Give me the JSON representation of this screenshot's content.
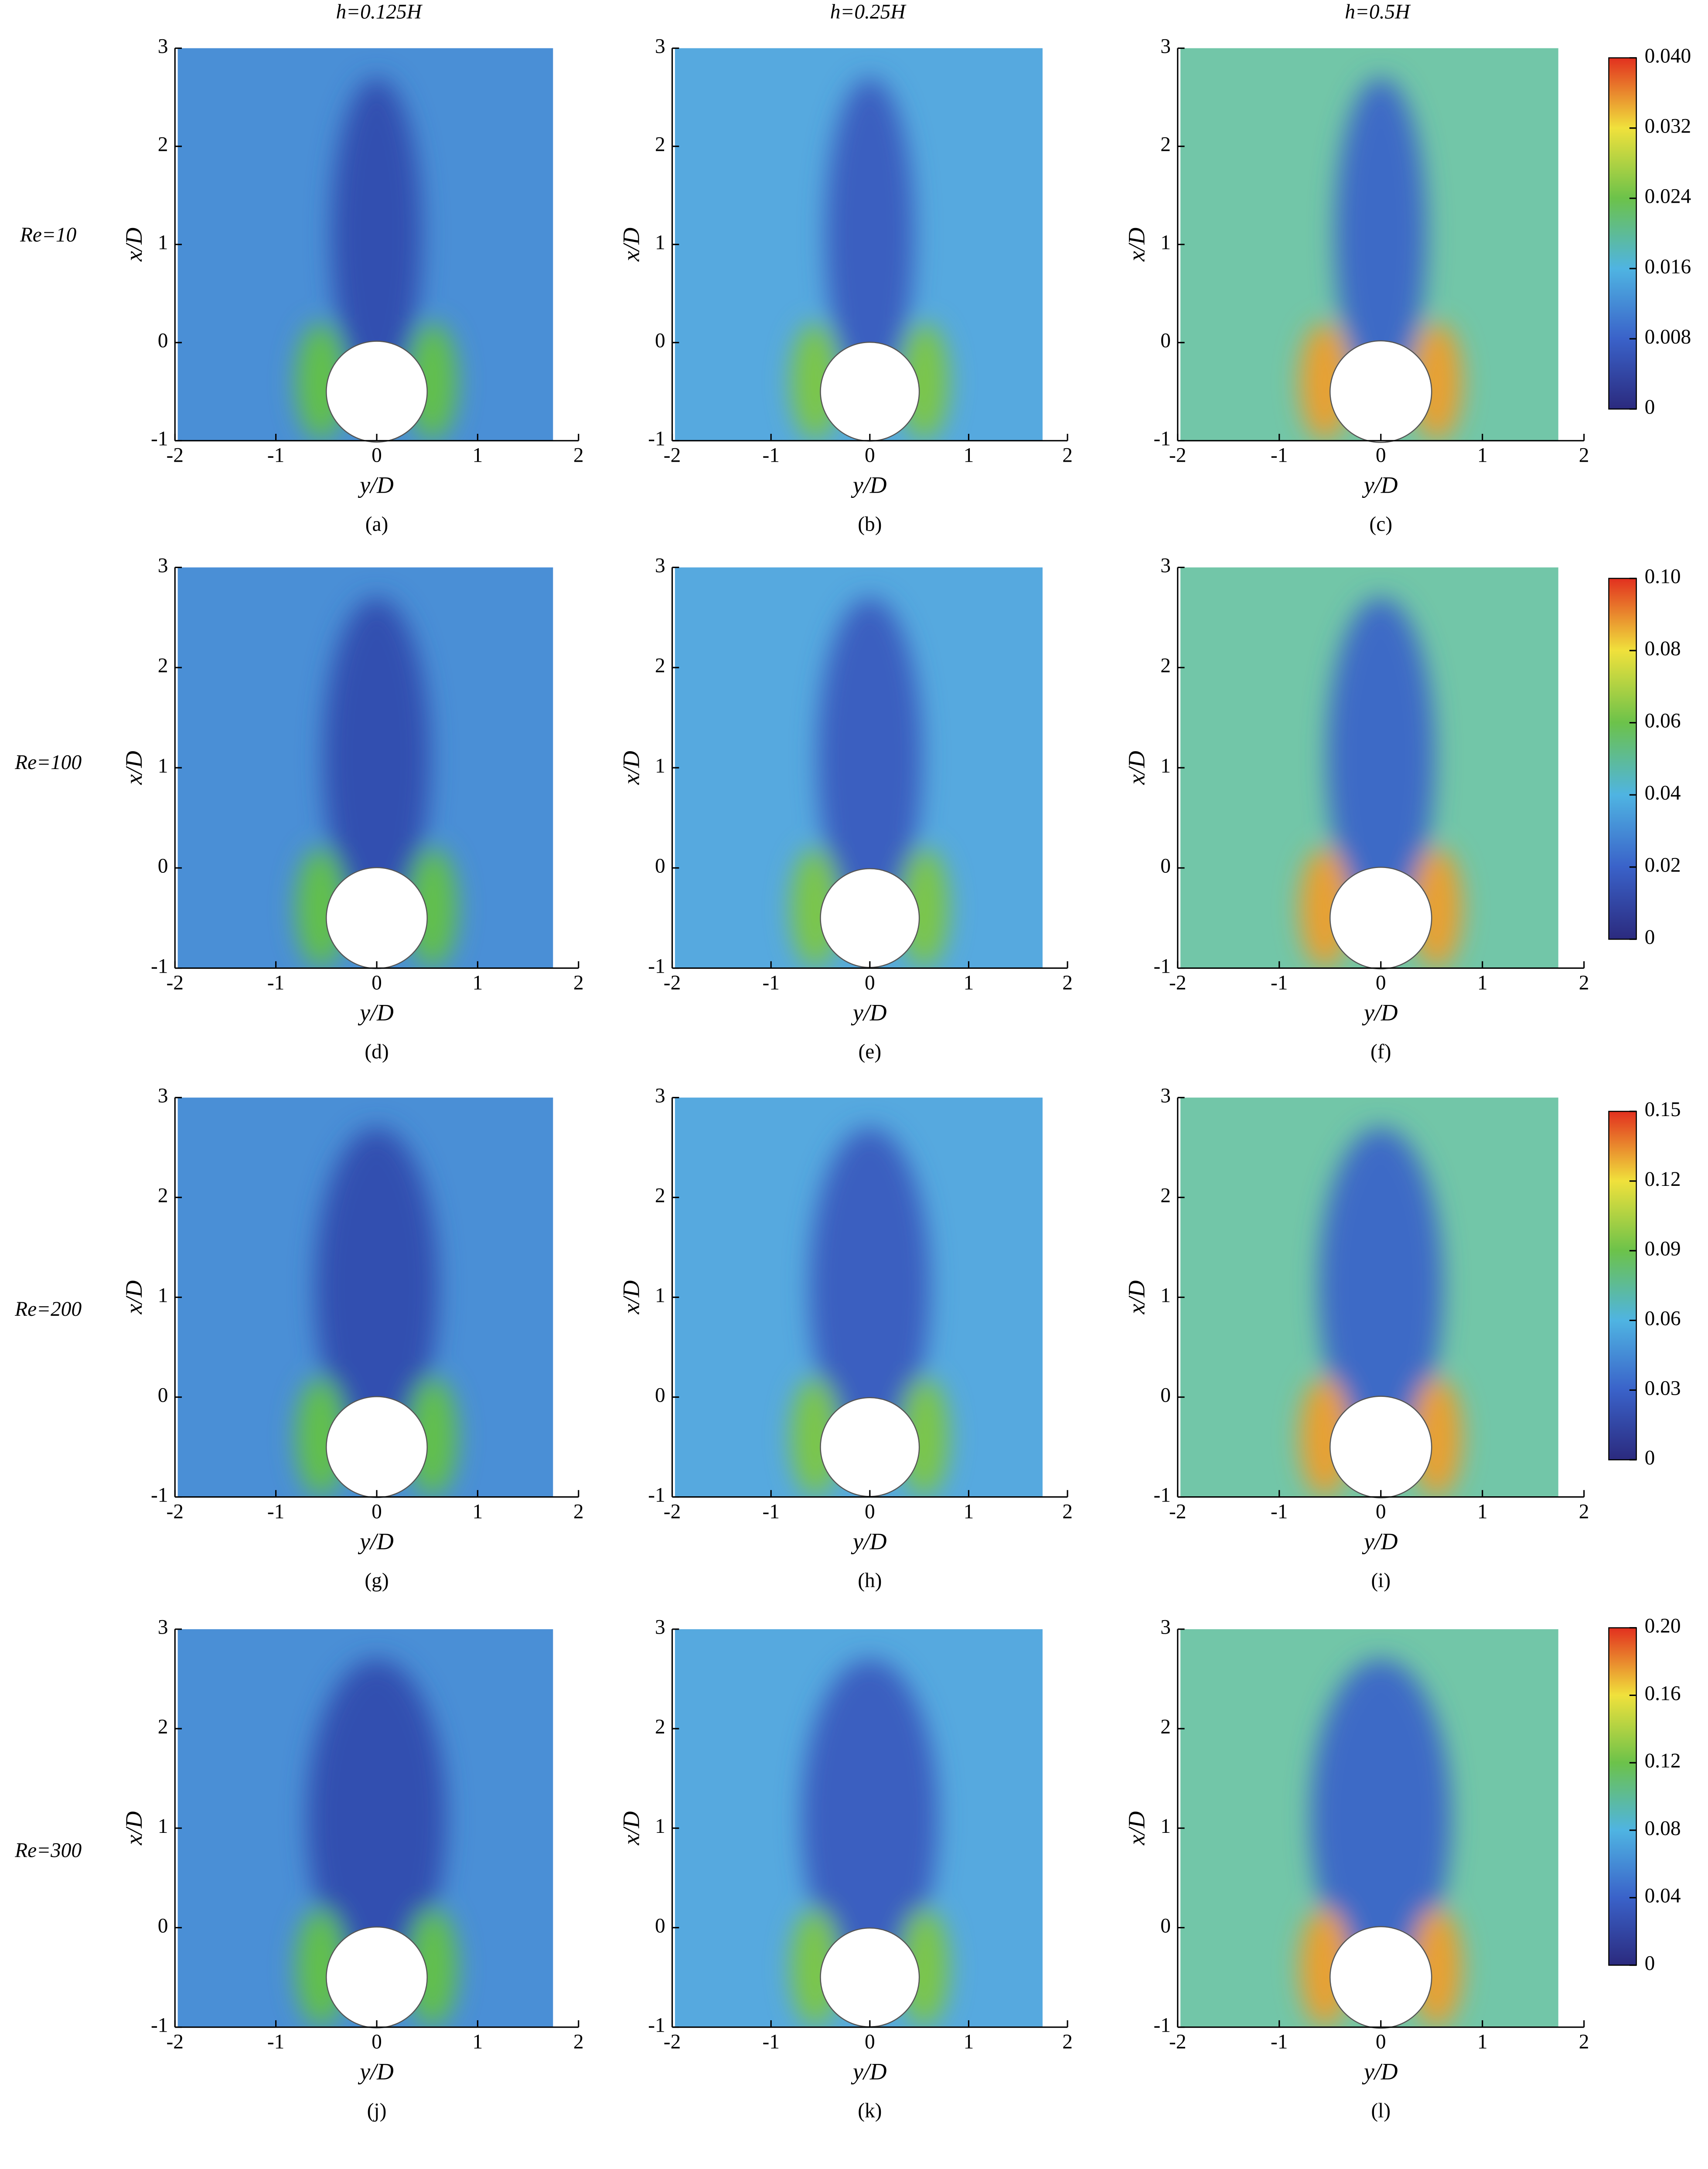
{
  "column_titles": [
    "h=0.125H",
    "h=0.25H",
    "h=0.5H"
  ],
  "row_labels": [
    "Re=10",
    "Re=100",
    "Re=200",
    "Re=300"
  ],
  "colorbars": [
    {
      "lim": [
        0,
        0.04
      ],
      "colors": [
        "#2b2a7e",
        "#3a62c9",
        "#4fb4e2",
        "#6cc24a",
        "#f0e13c",
        "#e2301f"
      ],
      "ticks": [
        0,
        {
          "value": 0.008,
          "label": "0.008"
        },
        {
          "value": 0.016,
          "label": "0.016"
        },
        {
          "value": 0.024,
          "label": "0.024"
        },
        {
          "value": 0.032,
          "label": "0.032"
        },
        {
          "value": 0.04,
          "label": "0.040"
        }
      ]
    },
    {
      "lim": [
        0,
        0.1
      ],
      "colors": [
        "#2b2a7e",
        "#3a62c9",
        "#4fb4e2",
        "#6cc24a",
        "#f0e13c",
        "#e2301f"
      ],
      "ticks": [
        0,
        0.02,
        0.04,
        0.06,
        0.08,
        {
          "value": 0.1,
          "label": "0.10"
        }
      ]
    },
    {
      "lim": [
        0,
        0.15
      ],
      "colors": [
        "#2b2a7e",
        "#3a62c9",
        "#4fb4e2",
        "#6cc24a",
        "#f0e13c",
        "#e2301f"
      ],
      "ticks": [
        0,
        0.03,
        0.06,
        0.09,
        0.12,
        0.15
      ]
    },
    {
      "lim": [
        0,
        0.2
      ],
      "colors": [
        "#2b2a7e",
        "#3a62c9",
        "#4fb4e2",
        "#6cc24a",
        "#f0e13c",
        "#e2301f"
      ],
      "ticks": [
        0,
        0.04,
        0.08,
        0.12,
        0.16,
        {
          "value": 0.2,
          "label": "0.20"
        }
      ]
    }
  ],
  "chart_data": [
    {
      "type": "contour",
      "caption": "(a)",
      "xlabel": "y/D",
      "ylabel": "x/D",
      "xlim": [
        -2,
        2
      ],
      "ylim": [
        -1,
        3
      ],
      "xticks": [
        -2,
        -1,
        0,
        1,
        2
      ],
      "yticks": [
        -1,
        0,
        1,
        2,
        3
      ]
    },
    {
      "type": "contour",
      "caption": "(b)",
      "xlabel": "y/D",
      "ylabel": "x/D",
      "xlim": [
        -2,
        2
      ],
      "ylim": [
        -1,
        3
      ],
      "xticks": [
        -2,
        -1,
        0,
        1,
        2
      ],
      "yticks": [
        -1,
        0,
        1,
        2,
        3
      ]
    },
    {
      "type": "contour",
      "caption": "(c)",
      "xlabel": "y/D",
      "ylabel": "x/D",
      "xlim": [
        -2,
        2
      ],
      "ylim": [
        -1,
        3
      ],
      "xticks": [
        -2,
        -1,
        0,
        1,
        2
      ],
      "yticks": [
        -1,
        0,
        1,
        2,
        3
      ]
    },
    {
      "type": "contour",
      "caption": "(d)",
      "xlabel": "y/D",
      "ylabel": "x/D",
      "xlim": [
        -2,
        2
      ],
      "ylim": [
        -1,
        3
      ],
      "xticks": [
        -2,
        -1,
        0,
        1,
        2
      ],
      "yticks": [
        -1,
        0,
        1,
        2,
        3
      ]
    },
    {
      "type": "contour",
      "caption": "(e)",
      "xlabel": "y/D",
      "ylabel": "x/D",
      "xlim": [
        -2,
        2
      ],
      "ylim": [
        -1,
        3
      ],
      "xticks": [
        -2,
        -1,
        0,
        1,
        2
      ],
      "yticks": [
        -1,
        0,
        1,
        2,
        3
      ]
    },
    {
      "type": "contour",
      "caption": "(f)",
      "xlabel": "y/D",
      "ylabel": "x/D",
      "xlim": [
        -2,
        2
      ],
      "ylim": [
        -1,
        3
      ],
      "xticks": [
        -2,
        -1,
        0,
        1,
        2
      ],
      "yticks": [
        -1,
        0,
        1,
        2,
        3
      ]
    },
    {
      "type": "contour",
      "caption": "(g)",
      "xlabel": "y/D",
      "ylabel": "x/D",
      "xlim": [
        -2,
        2
      ],
      "ylim": [
        -1,
        3
      ],
      "xticks": [
        -2,
        -1,
        0,
        1,
        2
      ],
      "yticks": [
        -1,
        0,
        1,
        2,
        3
      ]
    },
    {
      "type": "contour",
      "caption": "(h)",
      "xlabel": "y/D",
      "ylabel": "x/D",
      "xlim": [
        -2,
        2
      ],
      "ylim": [
        -1,
        3
      ],
      "xticks": [
        -2,
        -1,
        0,
        1,
        2
      ],
      "yticks": [
        -1,
        0,
        1,
        2,
        3
      ]
    },
    {
      "type": "contour",
      "caption": "(i)",
      "xlabel": "y/D",
      "ylabel": "x/D",
      "xlim": [
        -2,
        2
      ],
      "ylim": [
        -1,
        3
      ],
      "xticks": [
        -2,
        -1,
        0,
        1,
        2
      ],
      "yticks": [
        -1,
        0,
        1,
        2,
        3
      ]
    },
    {
      "type": "contour",
      "caption": "(j)",
      "xlabel": "y/D",
      "ylabel": "x/D",
      "xlim": [
        -2,
        2
      ],
      "ylim": [
        -1,
        3
      ],
      "xticks": [
        -2,
        -1,
        0,
        1,
        2
      ],
      "yticks": [
        -1,
        0,
        1,
        2,
        3
      ]
    },
    {
      "type": "contour",
      "caption": "(k)",
      "xlabel": "y/D",
      "ylabel": "x/D",
      "xlim": [
        -2,
        2
      ],
      "ylim": [
        -1,
        3
      ],
      "xticks": [
        -2,
        -1,
        0,
        1,
        2
      ],
      "yticks": [
        -1,
        0,
        1,
        2,
        3
      ]
    },
    {
      "type": "contour",
      "caption": "(l)",
      "xlabel": "y/D",
      "ylabel": "x/D",
      "xlim": [
        -2,
        2
      ],
      "ylim": [
        -1,
        3
      ],
      "xticks": [
        -2,
        -1,
        0,
        1,
        2
      ],
      "yticks": [
        -1,
        0,
        1,
        2,
        3
      ]
    }
  ]
}
